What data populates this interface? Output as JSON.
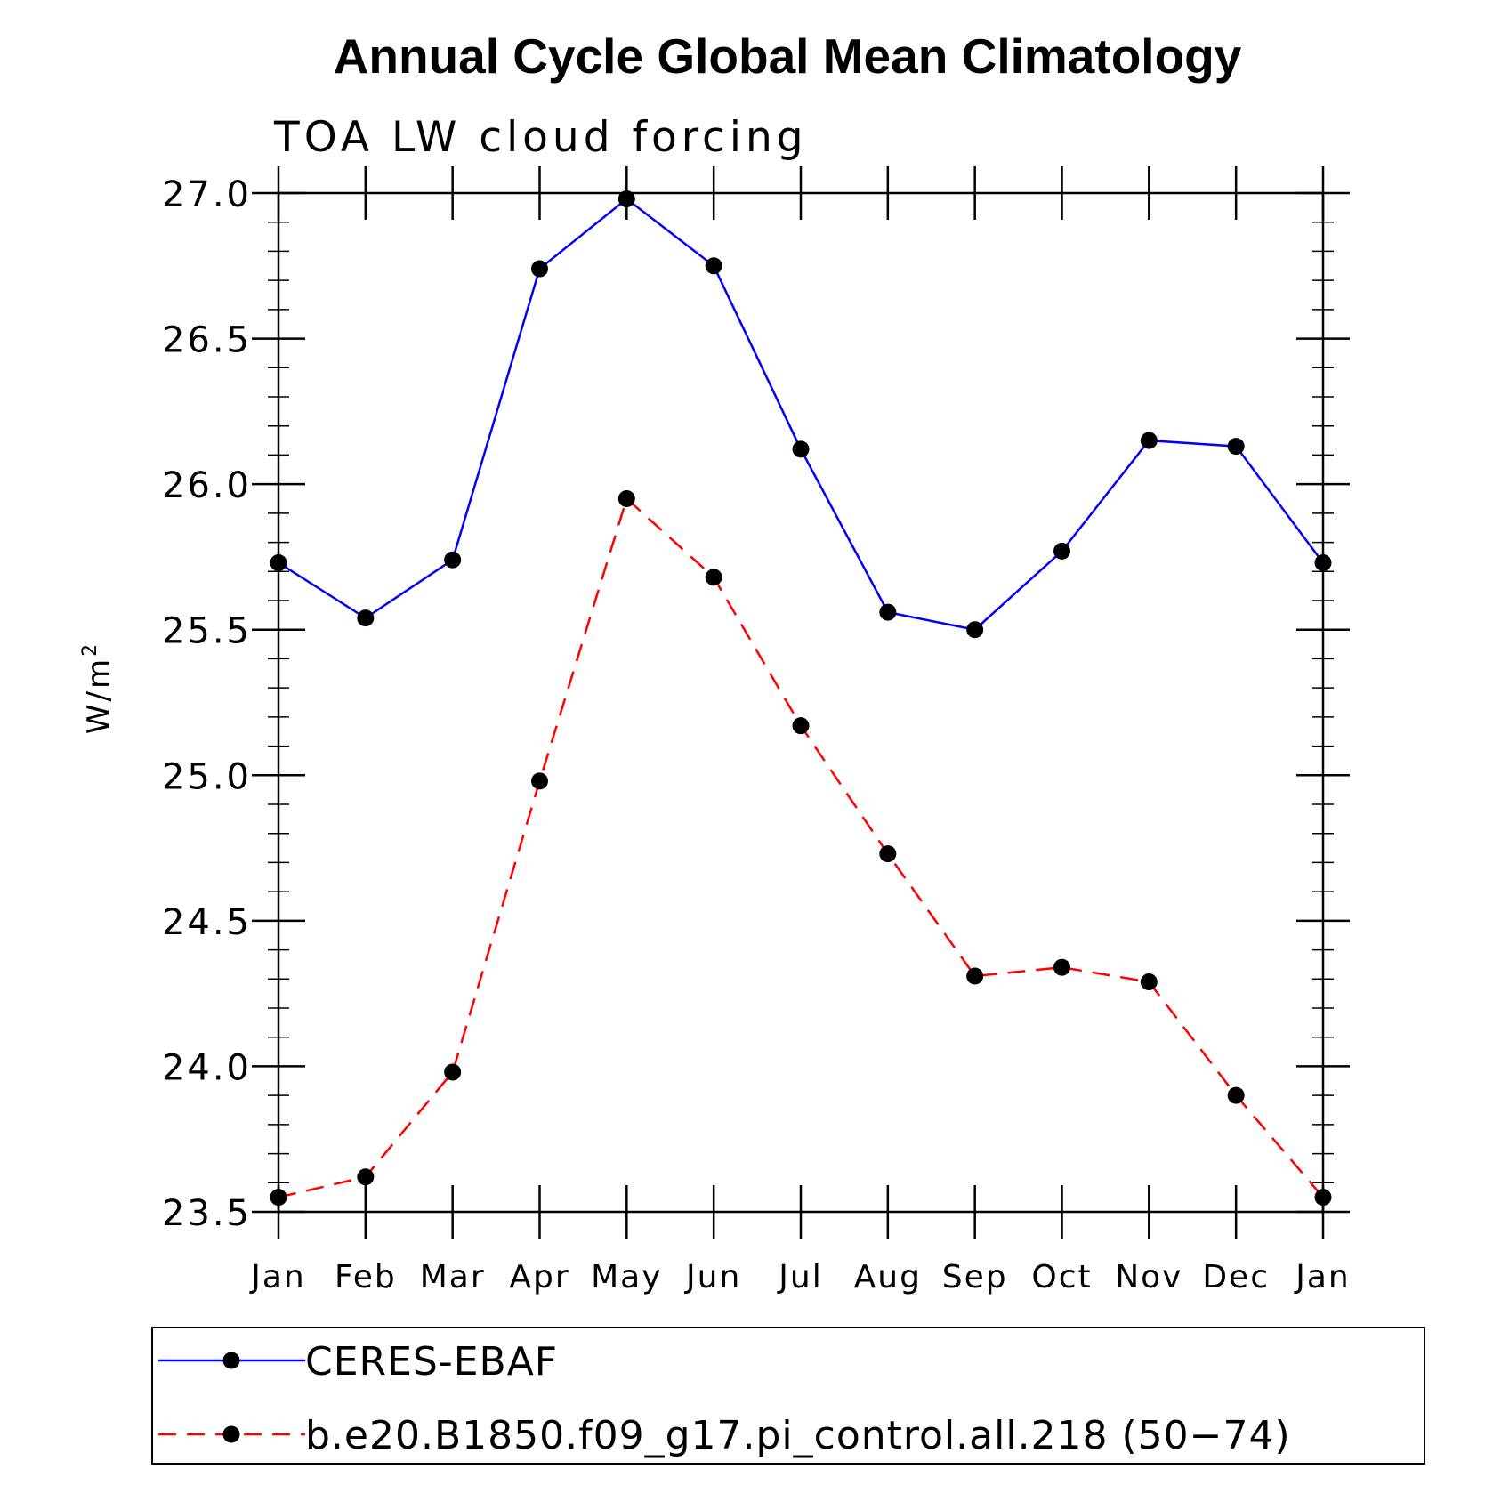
{
  "chart_data": {
    "type": "line",
    "title": "Annual Cycle Global Mean Climatology",
    "subtitle": "TOA LW cloud forcing",
    "ylabel": "W/m",
    "ylabel_superscript": "2",
    "xlabel": "",
    "categories": [
      "Jan",
      "Feb",
      "Mar",
      "Apr",
      "May",
      "Jun",
      "Jul",
      "Aug",
      "Sep",
      "Oct",
      "Nov",
      "Dec",
      "Jan"
    ],
    "ylim": [
      23.5,
      27.0
    ],
    "yticks": [
      23.5,
      24.0,
      24.5,
      25.0,
      25.5,
      26.0,
      26.5,
      27.0
    ],
    "ytick_labels": [
      "23.5",
      "24.0",
      "24.5",
      "25.0",
      "25.5",
      "26.0",
      "26.5",
      "27.0"
    ],
    "grid": false,
    "legend_position": "bottom",
    "series": [
      {
        "name": "CERES-EBAF",
        "color": "#0000ff",
        "dash": "solid",
        "marker": "filled-circle",
        "values": [
          25.73,
          25.54,
          25.74,
          26.74,
          26.98,
          26.75,
          26.12,
          25.56,
          25.5,
          25.77,
          26.15,
          26.13,
          25.73
        ]
      },
      {
        "name": "b.e20.B1850.f09_g17.pi_control.all.218 (50−74)",
        "color": "#ff0000",
        "dash": "dashed",
        "marker": "filled-circle",
        "values": [
          23.55,
          23.62,
          23.98,
          24.98,
          25.95,
          25.68,
          25.17,
          24.73,
          24.31,
          24.34,
          24.29,
          23.9,
          23.55
        ]
      }
    ]
  }
}
